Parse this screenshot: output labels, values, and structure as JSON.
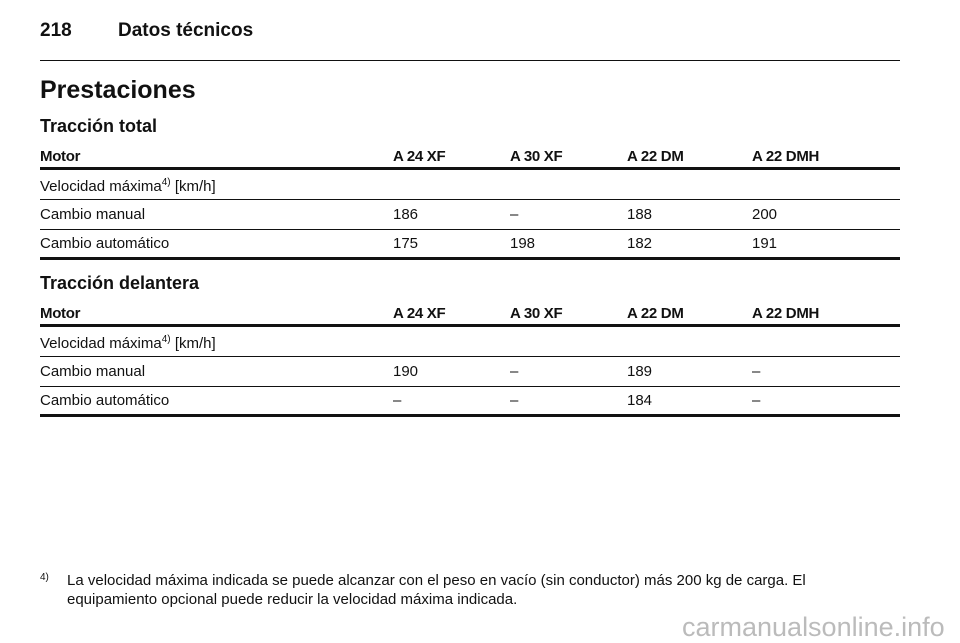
{
  "header": {
    "page_number": "218",
    "title": "Datos técnicos"
  },
  "section_title": "Prestaciones",
  "tables": [
    {
      "title": "Tracción total",
      "columns": [
        "Motor",
        "A 24 XF",
        "A 30 XF",
        "A 22 DM",
        "A 22 DMH"
      ],
      "subheading": {
        "text": "Velocidad máxima",
        "footnote_ref": "4)",
        "unit": "[km/h]"
      },
      "rows": [
        [
          "Cambio manual",
          "186",
          "–",
          "188",
          "200"
        ],
        [
          "Cambio automático",
          "175",
          "198",
          "182",
          "191"
        ]
      ]
    },
    {
      "title": "Tracción delantera",
      "columns": [
        "Motor",
        "A 24 XF",
        "A 30 XF",
        "A 22 DM",
        "A 22 DMH"
      ],
      "subheading": {
        "text": "Velocidad máxima",
        "footnote_ref": "4)",
        "unit": "[km/h]"
      },
      "rows": [
        [
          "Cambio manual",
          "190",
          "–",
          "189",
          "–"
        ],
        [
          "Cambio automático",
          "–",
          "–",
          "184",
          "–"
        ]
      ]
    }
  ],
  "footnote": {
    "marker": "4)",
    "lines": [
      "La velocidad máxima indicada se puede alcanzar con el peso en vacío (sin conductor) más 200 kg de carga. El",
      "equipamiento opcional puede reducir la velocidad máxima indicada."
    ]
  },
  "watermark": "carmanualsonline.info"
}
